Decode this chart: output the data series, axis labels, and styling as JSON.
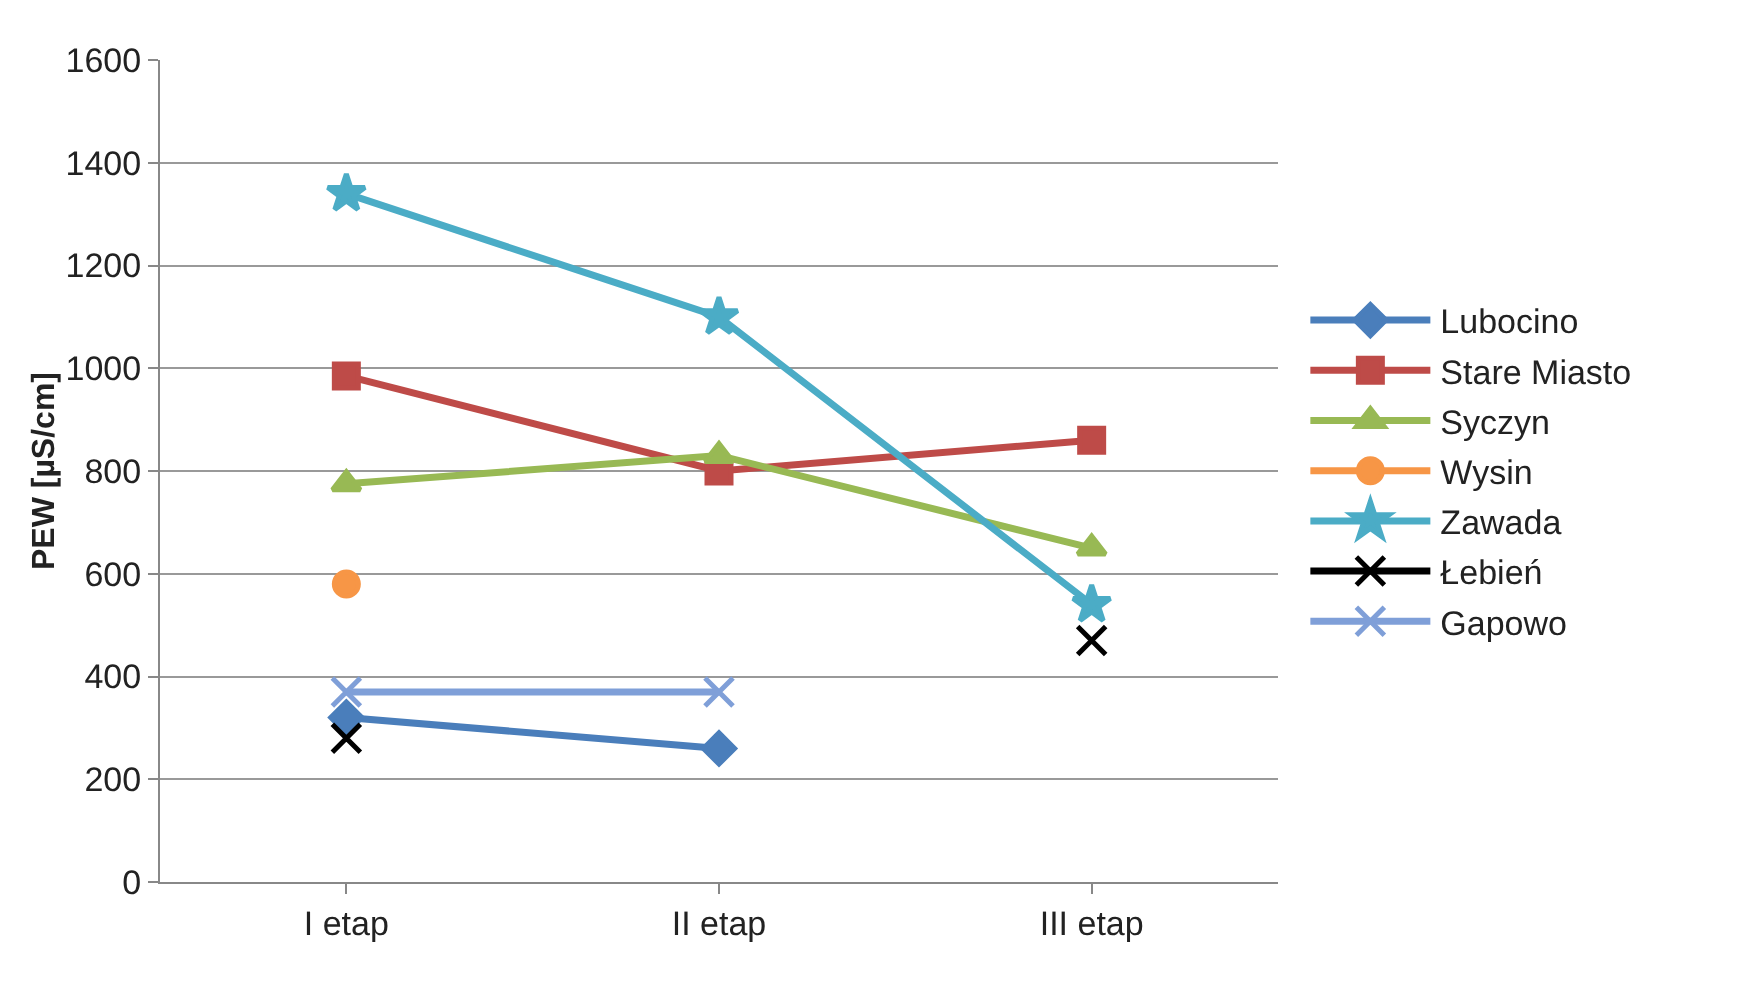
{
  "chart_data": {
    "type": "line",
    "ylabel": "PEW [µS/cm]",
    "categories": [
      "I etap",
      "II etap",
      "III etap"
    ],
    "ylim": [
      0,
      1600
    ],
    "yticks": [
      0,
      200,
      400,
      600,
      800,
      1000,
      1200,
      1400,
      1600
    ],
    "grid": "y",
    "legend": "right",
    "series": [
      {
        "name": "Lubocino",
        "color": "#4a7ebb",
        "marker": "diamond",
        "values": [
          320,
          260,
          null
        ]
      },
      {
        "name": "Stare Miasto",
        "color": "#be4b48",
        "marker": "square",
        "values": [
          985,
          800,
          860
        ]
      },
      {
        "name": "Syczyn",
        "color": "#98b954",
        "marker": "triangle",
        "values": [
          775,
          830,
          650
        ]
      },
      {
        "name": "Wysin",
        "color": "#f79646",
        "marker": "circle",
        "values": [
          580,
          null,
          null
        ]
      },
      {
        "name": "Zawada",
        "color": "#4bacc6",
        "marker": "star",
        "values": [
          1340,
          1100,
          540
        ]
      },
      {
        "name": "Łebień",
        "color": "#000000",
        "marker": "cross",
        "values": [
          280,
          null,
          470
        ]
      },
      {
        "name": "Gapowo",
        "color": "#7f9fd8",
        "marker": "cross",
        "values": [
          370,
          370,
          null
        ]
      }
    ]
  }
}
